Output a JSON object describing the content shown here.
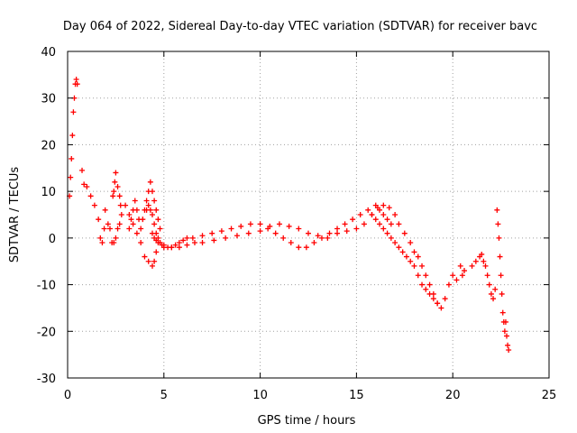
{
  "chart_data": {
    "type": "scatter",
    "title": "Day 064 of 2022, Sidereal Day-to-day VTEC variation (SDTVAR) for receiver bavc",
    "xlabel": "GPS time / hours",
    "ylabel": "SDTVAR / TECUs",
    "xlim": [
      0,
      25
    ],
    "ylim": [
      -30,
      40
    ],
    "xticks": [
      0,
      5,
      10,
      15,
      20,
      25
    ],
    "yticks": [
      -30,
      -20,
      -10,
      0,
      10,
      20,
      30,
      40
    ],
    "grid": true,
    "marker": "+",
    "series": [
      {
        "name": "SDTVAR",
        "color": "#ff0000",
        "x": [
          0.1,
          0.15,
          0.2,
          0.25,
          0.3,
          0.35,
          0.4,
          0.45,
          0.5,
          0.75,
          0.85,
          1.0,
          1.2,
          1.4,
          1.6,
          1.7,
          1.8,
          1.9,
          1.95,
          2.1,
          2.2,
          2.3,
          2.4,
          2.5,
          2.6,
          2.7,
          2.8,
          3.0,
          3.2,
          3.4,
          3.6,
          3.8,
          4.0,
          4.2,
          4.4,
          4.5,
          4.6,
          2.35,
          2.4,
          2.45,
          2.5,
          2.6,
          2.7,
          2.75,
          3.2,
          3.3,
          3.4,
          3.5,
          3.6,
          3.7,
          3.8,
          3.9,
          4.0,
          4.1,
          4.2,
          4.3,
          4.4,
          4.5,
          4.6,
          4.7,
          4.8,
          4.1,
          4.2,
          4.3,
          4.4,
          4.5,
          4.6,
          4.7,
          4.8,
          4.9,
          5.0,
          5.2,
          5.4,
          5.6,
          5.8,
          6.0,
          6.2,
          6.5,
          7.0,
          7.5,
          8.0,
          8.5,
          9.0,
          9.5,
          10.0,
          10.4,
          10.8,
          11.2,
          11.6,
          12.0,
          12.4,
          12.8,
          13.2,
          13.6,
          14.0,
          14.4,
          14.8,
          15.2,
          15.6,
          16.0,
          16.2,
          16.4,
          16.6,
          16.8,
          4.4,
          4.5,
          4.6,
          4.7,
          4.8,
          5.0,
          5.4,
          5.8,
          6.2,
          6.6,
          7.0,
          7.6,
          8.2,
          8.8,
          9.4,
          10.0,
          10.5,
          11.0,
          11.5,
          12.0,
          12.5,
          13.0,
          13.5,
          14.0,
          14.5,
          15.0,
          15.4,
          15.8,
          16.1,
          16.4,
          16.7,
          17.0,
          17.2,
          17.5,
          17.8,
          15.8,
          16.0,
          16.2,
          16.4,
          16.6,
          16.8,
          17.0,
          17.2,
          17.4,
          17.6,
          17.8,
          18.0,
          18.2,
          18.4,
          18.6,
          18.8,
          19.0,
          19.2,
          18.0,
          18.2,
          18.4,
          18.6,
          18.8,
          19.0,
          19.2,
          19.4,
          19.6,
          19.8,
          20.0,
          20.2,
          20.5,
          20.4,
          20.6,
          21.0,
          21.2,
          21.4,
          21.5,
          21.6,
          21.7,
          21.8,
          21.9,
          22.0,
          22.1,
          22.2,
          22.3,
          22.35,
          22.4,
          22.45,
          22.5,
          22.55,
          22.6,
          22.65,
          22.7,
          22.75,
          22.8,
          22.85,
          22.9
        ],
        "y": [
          9,
          13,
          17,
          22,
          27,
          30,
          33,
          34,
          33,
          14.5,
          11.5,
          11,
          9,
          7,
          4,
          0,
          -1,
          2,
          6,
          3,
          2,
          -1,
          -1,
          0,
          2,
          3,
          5,
          7,
          5,
          3,
          1,
          -1,
          -4,
          -5,
          -6,
          -5,
          -3,
          9,
          10,
          12,
          14,
          11,
          9,
          7,
          2,
          4,
          6,
          8,
          6,
          4,
          2,
          4,
          6,
          8,
          10,
          12,
          10,
          8,
          6,
          4,
          2,
          6,
          7,
          6,
          5,
          3,
          1,
          0,
          -1,
          -1.5,
          -2,
          -2,
          -2,
          -1.5,
          -1,
          -0.5,
          0,
          0,
          0.5,
          1,
          1.5,
          2,
          2.5,
          3,
          3,
          2,
          1,
          0,
          -1,
          -2,
          -2,
          -1,
          0,
          1,
          2,
          3,
          4,
          5,
          6,
          7,
          6,
          5,
          4,
          3,
          1,
          0,
          -0.5,
          -1,
          -1,
          -1.5,
          -2,
          -2,
          -1.5,
          -1,
          -1,
          -0.5,
          0,
          0.5,
          1,
          1.5,
          2.5,
          3,
          2.5,
          2,
          1,
          0.5,
          0,
          1,
          1.5,
          2,
          3,
          5,
          6.5,
          7,
          6.5,
          5,
          3,
          1,
          -1,
          5,
          4,
          3,
          2,
          1,
          0,
          -1,
          -2,
          -3,
          -4,
          -5,
          -6,
          -8,
          -10,
          -11,
          -12,
          -13,
          -14,
          -3,
          -4,
          -6,
          -8,
          -10,
          -12,
          -14,
          -15,
          -13,
          -10,
          -8,
          -9,
          -8,
          -6,
          -7,
          -6,
          -5,
          -4,
          -3.5,
          -5,
          -6,
          -8,
          -10,
          -12,
          -13,
          -11,
          6,
          3,
          0,
          -4,
          -8,
          -12,
          -16,
          -18,
          -20,
          -18,
          -21,
          -23,
          -24
        ]
      }
    ]
  }
}
